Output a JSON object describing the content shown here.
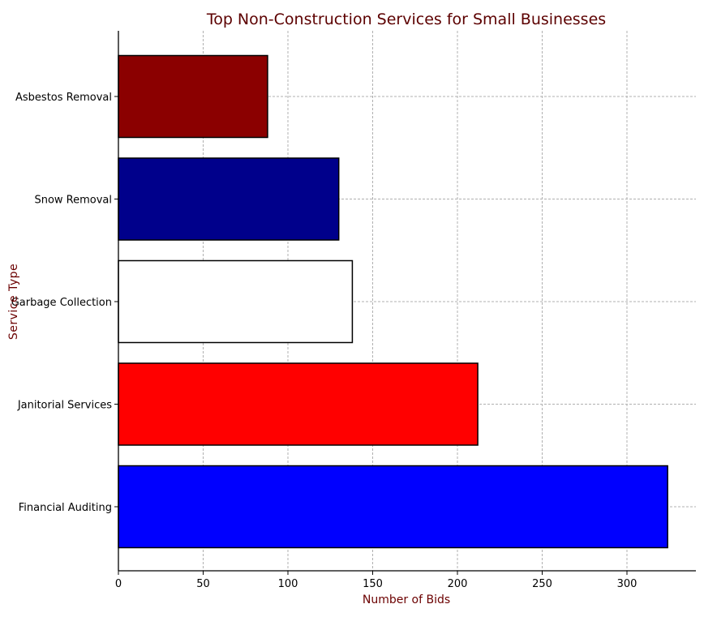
{
  "chart_data": {
    "type": "bar",
    "orientation": "horizontal",
    "title": "Top Non-Construction Services for Small Businesses",
    "xlabel": "Number of Bids",
    "ylabel": "Service Type",
    "categories": [
      "Asbestos Removal",
      "Snow Removal",
      "Garbage Collection",
      "Janitorial Services",
      "Financial Auditing"
    ],
    "values": [
      88,
      130,
      138,
      212,
      324
    ],
    "bar_colors": [
      "#8b0000",
      "#00008b",
      "#ffffff",
      "#ff0000",
      "#0000ff"
    ],
    "xlim": [
      0,
      340
    ],
    "xticks": [
      0,
      50,
      100,
      150,
      200,
      250,
      300
    ],
    "grid": true,
    "title_color": "#5c0000",
    "label_color": "#6b0000"
  }
}
